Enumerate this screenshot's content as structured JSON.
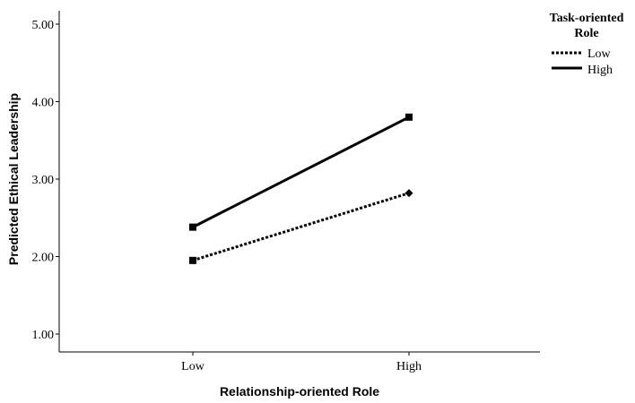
{
  "chart_data": {
    "type": "line",
    "xlabel": "Relationship-oriented Role",
    "ylabel": "Predicted Ethical Leadership",
    "categories": [
      "Low",
      "High"
    ],
    "ylim": [
      1.0,
      5.0
    ],
    "yticks": [
      "1.00",
      "2.00",
      "3.00",
      "4.00",
      "5.00"
    ],
    "grid": false,
    "legend": {
      "title_line1": "Task-oriented",
      "title_line2": "Role",
      "placement": "top-right"
    },
    "series": [
      {
        "name": "Low",
        "values": [
          1.95,
          2.82
        ],
        "style": "dotted",
        "markers": [
          "square",
          "diamond"
        ],
        "color": "#000000"
      },
      {
        "name": "High",
        "values": [
          2.38,
          3.8
        ],
        "style": "solid",
        "markers": [
          "square",
          "square"
        ],
        "color": "#000000"
      }
    ]
  }
}
